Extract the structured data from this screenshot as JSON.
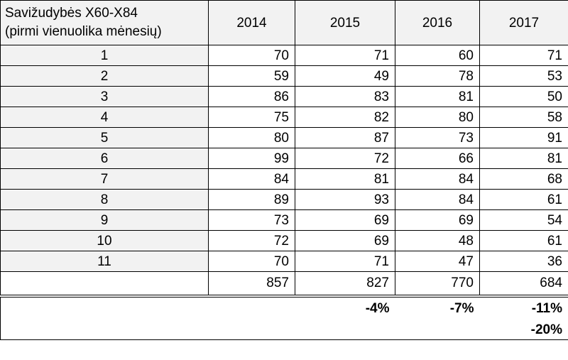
{
  "header": {
    "label_line1": "Savižudybės X60-X84",
    "label_line2": "(pirmi vienuolika mėnesių)",
    "years": [
      "2014",
      "2015",
      "2016",
      "2017"
    ]
  },
  "rows": [
    {
      "month": "1",
      "values": [
        "70",
        "71",
        "60",
        "71"
      ]
    },
    {
      "month": "2",
      "values": [
        "59",
        "49",
        "78",
        "53"
      ]
    },
    {
      "month": "3",
      "values": [
        "86",
        "83",
        "81",
        "50"
      ]
    },
    {
      "month": "4",
      "values": [
        "75",
        "82",
        "80",
        "58"
      ]
    },
    {
      "month": "5",
      "values": [
        "80",
        "87",
        "73",
        "91"
      ]
    },
    {
      "month": "6",
      "values": [
        "99",
        "72",
        "66",
        "81"
      ]
    },
    {
      "month": "7",
      "values": [
        "84",
        "81",
        "84",
        "68"
      ]
    },
    {
      "month": "8",
      "values": [
        "89",
        "93",
        "84",
        "61"
      ]
    },
    {
      "month": "9",
      "values": [
        "73",
        "69",
        "69",
        "54"
      ]
    },
    {
      "month": "10",
      "values": [
        "72",
        "69",
        "48",
        "61"
      ]
    },
    {
      "month": "11",
      "values": [
        "70",
        "71",
        "47",
        "36"
      ]
    }
  ],
  "totals": [
    "857",
    "827",
    "770",
    "684"
  ],
  "changes": [
    "",
    "-4%",
    "-7%",
    "-11%"
  ],
  "change_extra": "-20%"
}
